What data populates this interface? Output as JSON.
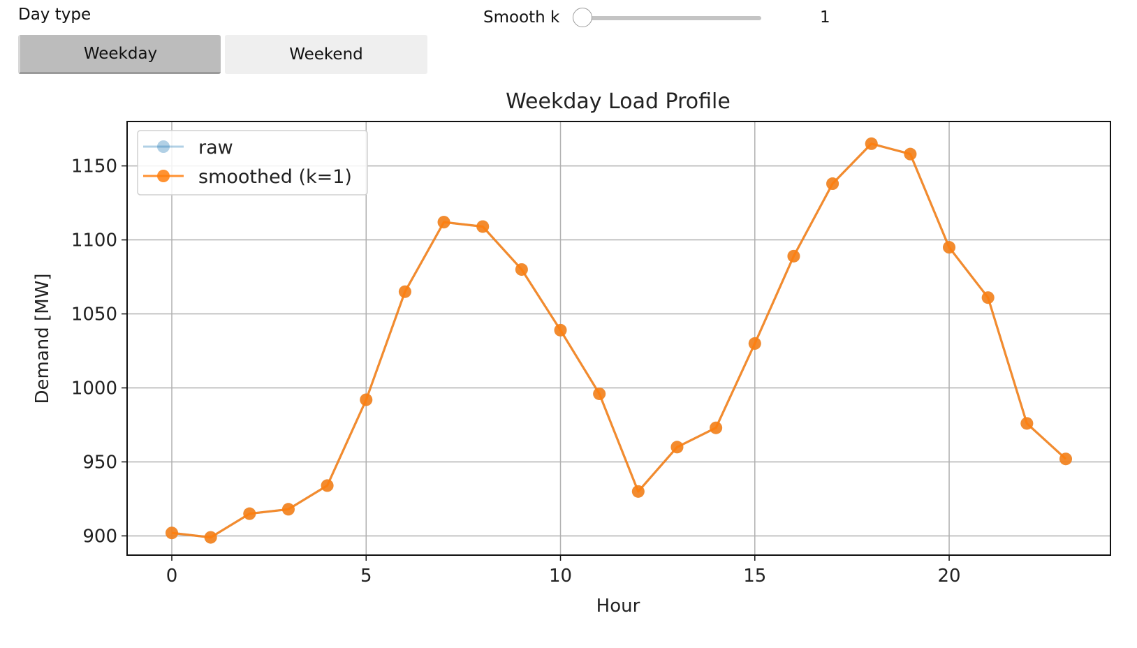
{
  "controls": {
    "day_type_label": "Day type",
    "day_type_options": [
      "Weekday",
      "Weekend"
    ],
    "day_type_selected": "Weekday",
    "smooth_label": "Smooth k",
    "smooth_value": "1",
    "smooth_fraction": 0.0
  },
  "chart_data": {
    "type": "line",
    "title": "Weekday Load Profile",
    "xlabel": "Hour",
    "ylabel": "Demand [MW]",
    "xlim": [
      -1.15,
      24.15
    ],
    "ylim": [
      887,
      1180
    ],
    "xticks": [
      0,
      5,
      10,
      15,
      20
    ],
    "yticks": [
      900,
      950,
      1000,
      1050,
      1100,
      1150
    ],
    "grid": true,
    "legend_position": "top-left",
    "x": [
      0,
      1,
      2,
      3,
      4,
      5,
      6,
      7,
      8,
      9,
      10,
      11,
      12,
      13,
      14,
      15,
      16,
      17,
      18,
      19,
      20,
      21,
      22,
      23
    ],
    "series": [
      {
        "name": "raw",
        "color": "#1f77b4",
        "values": [
          902,
          899,
          915,
          918,
          934,
          992,
          1065,
          1112,
          1109,
          1080,
          1039,
          996,
          930,
          960,
          973,
          1030,
          1089,
          1138,
          1165,
          1158,
          1095,
          1061,
          976,
          952
        ]
      },
      {
        "name": "smoothed (k=1)",
        "color": "#ff7f0e",
        "values": [
          902,
          899,
          915,
          918,
          934,
          992,
          1065,
          1112,
          1109,
          1080,
          1039,
          996,
          930,
          960,
          973,
          1030,
          1089,
          1138,
          1165,
          1158,
          1095,
          1061,
          976,
          952
        ]
      }
    ]
  }
}
